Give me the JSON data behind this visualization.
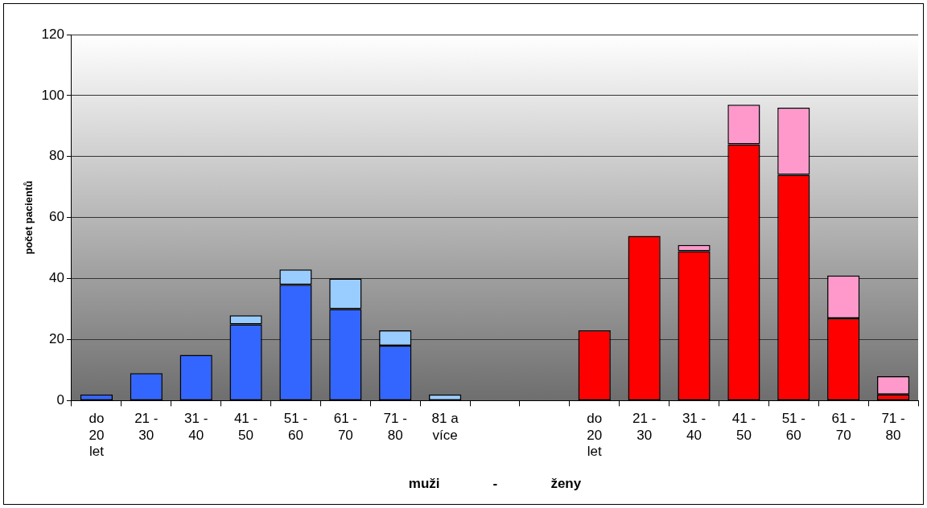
{
  "chart_data": {
    "type": "bar",
    "stacked": true,
    "xlabel": "muži - ženy",
    "ylabel": "počet pacientů",
    "categories": [
      "do 20 let",
      "21 - 30",
      "31 - 40",
      "41 - 50",
      "51 - 60",
      "61 - 70",
      "71 - 80",
      "81 a více",
      null,
      null,
      "do 20 let",
      "21 - 30",
      "31 - 40",
      "41 - 50",
      "51 - 60",
      "61 - 70",
      "71 - 80"
    ],
    "series": [
      {
        "color": "#3366ff",
        "values": [
          2,
          9,
          15,
          25,
          38,
          30,
          18,
          null,
          null,
          null,
          null,
          null,
          null,
          null,
          null,
          null,
          null
        ]
      },
      {
        "color": "#99ccff",
        "values": [
          null,
          null,
          null,
          3,
          5,
          10,
          5,
          2,
          null,
          null,
          null,
          null,
          null,
          null,
          null,
          null,
          null
        ]
      },
      {
        "color": "#ff0000",
        "values": [
          null,
          null,
          null,
          null,
          null,
          null,
          null,
          null,
          null,
          null,
          23,
          54,
          49,
          84,
          74,
          27,
          2
        ]
      },
      {
        "color": "#ff99cc",
        "values": [
          null,
          null,
          null,
          null,
          null,
          null,
          null,
          null,
          null,
          null,
          null,
          null,
          2,
          13,
          22,
          14,
          6
        ]
      }
    ],
    "ylim": [
      0,
      120
    ],
    "yticks": [
      0,
      20,
      40,
      60,
      80,
      100,
      120
    ],
    "grid": "y",
    "legend": false
  }
}
